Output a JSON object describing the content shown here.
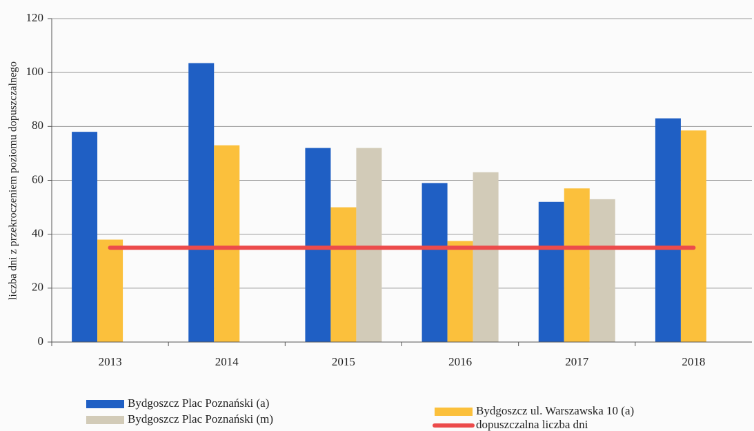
{
  "chart_data": {
    "type": "bar",
    "y_label": "liczba dni z przekroczeniem poziomu dopuszczalnego",
    "categories": [
      "2013",
      "2014",
      "2015",
      "2016",
      "2017",
      "2018"
    ],
    "series": [
      {
        "name": "Bydgoszcz Plac Poznański (a)",
        "color": "#1f5fc4",
        "type": "bar",
        "values": [
          78,
          103.5,
          72,
          59,
          52,
          83
        ]
      },
      {
        "name": "Bydgoszcz ul. Warszawska 10 (a)",
        "color": "#fbc03c",
        "type": "bar",
        "values": [
          38,
          73,
          50,
          37.5,
          57,
          78.5
        ]
      },
      {
        "name": "Bydgoszcz Plac Poznański (m)",
        "color": "#d2cbb8",
        "type": "bar",
        "values": [
          null,
          null,
          72,
          63,
          53,
          null
        ]
      },
      {
        "name": "dopuszczalna liczba dni",
        "color": "#ec4b4b",
        "type": "line",
        "values": [
          35,
          35,
          35,
          35,
          35,
          35
        ]
      }
    ],
    "ylim": [
      0,
      120
    ],
    "yticks": [
      0,
      20,
      40,
      60,
      80,
      100,
      120
    ],
    "grid": true
  }
}
